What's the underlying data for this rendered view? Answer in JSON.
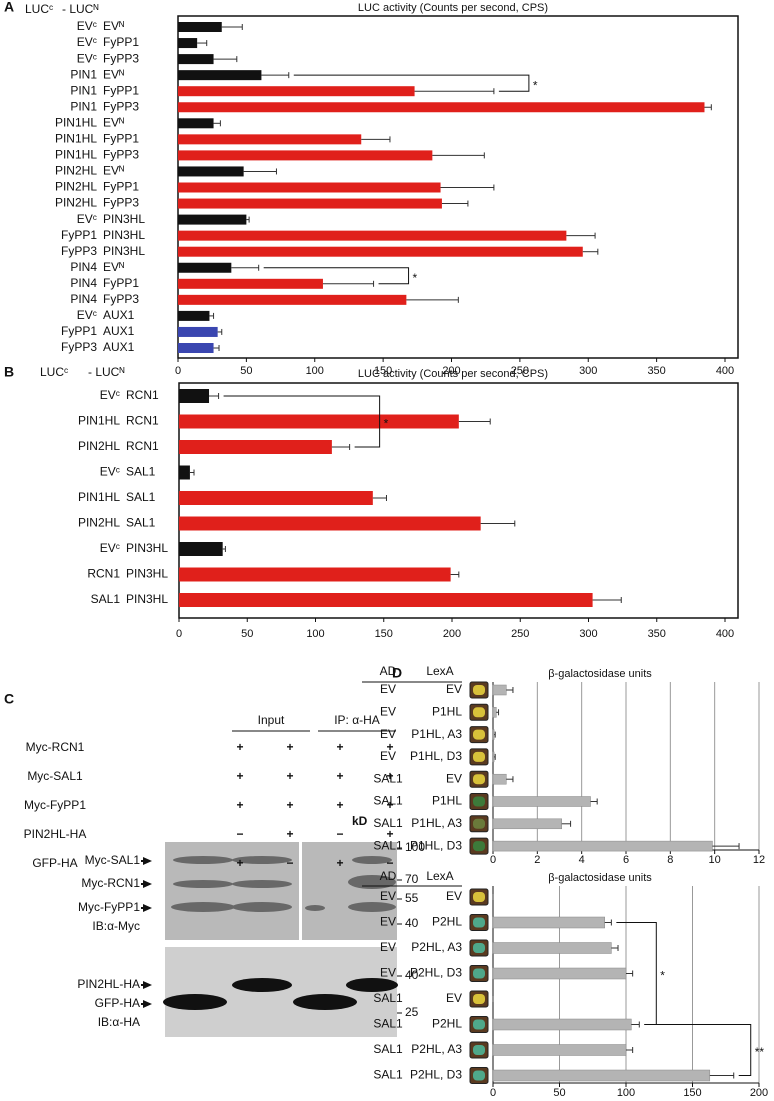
{
  "chart_data": [
    {
      "type": "bar",
      "panel": "A",
      "title": "LUC activity (Counts per second, CPS)",
      "headers": [
        "LUCᶜ",
        "- LUCᴺ"
      ],
      "labels": [
        [
          "EVᶜ",
          "EVᴺ"
        ],
        [
          "EVᶜ",
          "FyPP1"
        ],
        [
          "EVᶜ",
          "FyPP3"
        ],
        [
          "PIN1",
          "EVᴺ"
        ],
        [
          "PIN1",
          "FyPP1"
        ],
        [
          "PIN1",
          "FyPP3"
        ],
        [
          "PIN1HL",
          "EVᴺ"
        ],
        [
          "PIN1HL",
          "FyPP1"
        ],
        [
          "PIN1HL",
          "FyPP3"
        ],
        [
          "PIN2HL",
          "EVᴺ"
        ],
        [
          "PIN2HL",
          "FyPP1"
        ],
        [
          "PIN2HL",
          "FyPP3"
        ],
        [
          "EVᶜ",
          "PIN3HL"
        ],
        [
          "FyPP1",
          "PIN3HL"
        ],
        [
          "FyPP3",
          "PIN3HL"
        ],
        [
          "PIN4",
          "EVᴺ"
        ],
        [
          "PIN4",
          "FyPP1"
        ],
        [
          "PIN4",
          "FyPP3"
        ],
        [
          "EVᶜ",
          "AUX1"
        ],
        [
          "FyPP1",
          "AUX1"
        ],
        [
          "FyPP3",
          "AUX1"
        ]
      ],
      "values": [
        32,
        14,
        26,
        61,
        173,
        385,
        26,
        134,
        186,
        48,
        192,
        193,
        50,
        284,
        296,
        39,
        106,
        167,
        23,
        29,
        26
      ],
      "errors": [
        15,
        7,
        17,
        20,
        58,
        5,
        5,
        21,
        38,
        24,
        39,
        19,
        2,
        21,
        11,
        20,
        37,
        38,
        3,
        3,
        4
      ],
      "colors": [
        "#111111",
        "#111111",
        "#111111",
        "#111111",
        "#e0201b",
        "#e0201b",
        "#111111",
        "#e0201b",
        "#e0201b",
        "#111111",
        "#e0201b",
        "#e0201b",
        "#111111",
        "#e0201b",
        "#e0201b",
        "#111111",
        "#e0201b",
        "#e0201b",
        "#111111",
        "#3a46b0",
        "#3a46b0"
      ],
      "xlim": [
        0,
        400
      ],
      "xticks": [
        0,
        50,
        100,
        150,
        200,
        250,
        300,
        350,
        400
      ],
      "grid": false,
      "frame": true,
      "annotations": [
        {
          "text": "*",
          "rows": [
            3,
            4
          ]
        },
        {
          "text": "*",
          "rows": [
            15,
            16
          ]
        }
      ]
    },
    {
      "type": "bar",
      "panel": "B",
      "title": "LUC activity (Counts per second, CPS)",
      "headers": [
        "LUCᶜ",
        "- LUCᴺ"
      ],
      "labels": [
        [
          "EVᶜ",
          "RCN1"
        ],
        [
          "PIN1HL",
          "RCN1"
        ],
        [
          "PIN2HL",
          "RCN1"
        ],
        [
          "EVᶜ",
          "SAL1"
        ],
        [
          "PIN1HL",
          "SAL1"
        ],
        [
          "PIN2HL",
          "SAL1"
        ],
        [
          "EVᶜ",
          "PIN3HL"
        ],
        [
          "RCN1",
          "PIN3HL"
        ],
        [
          "SAL1",
          "PIN3HL"
        ]
      ],
      "values": [
        22,
        205,
        112,
        8,
        142,
        221,
        32,
        199,
        303
      ],
      "errors": [
        7,
        23,
        13,
        3,
        10,
        25,
        2,
        6,
        21
      ],
      "colors": [
        "#111111",
        "#e0201b",
        "#e0201b",
        "#111111",
        "#e0201b",
        "#e0201b",
        "#111111",
        "#e0201b",
        "#e0201b"
      ],
      "xlim": [
        0,
        400
      ],
      "xticks": [
        0,
        50,
        100,
        150,
        200,
        250,
        300,
        350,
        400
      ],
      "grid": false,
      "frame": true,
      "annotations": [
        {
          "text": "*",
          "rows": [
            0,
            2
          ]
        }
      ]
    },
    {
      "type": "bar",
      "panel": "D",
      "title": "β-galactosidase units",
      "headers": [
        "AD",
        "LexA"
      ],
      "labels": [
        [
          "EV",
          "EV"
        ],
        [
          "EV",
          "P1HL"
        ],
        [
          "EV",
          "P1HL, A3"
        ],
        [
          "EV",
          "P1HL, D3"
        ],
        [
          "SAL1",
          "EV"
        ],
        [
          "SAL1",
          "P1HL"
        ],
        [
          "SAL1",
          "P1HL, A3"
        ],
        [
          "SAL1",
          "P1HL, D3"
        ]
      ],
      "values": [
        0.6,
        0.15,
        0.05,
        0.05,
        0.6,
        4.4,
        3.1,
        9.9
      ],
      "errors": [
        0.3,
        0.1,
        0.05,
        0.05,
        0.3,
        0.3,
        0.4,
        1.2
      ],
      "color": "#b4b4b4",
      "patch_colors": [
        "#d8c13a",
        "#d8c13a",
        "#d8c13a",
        "#d8c13a",
        "#d8c13a",
        "#3d7a3a",
        "#6a7a3a",
        "#3d7a3a"
      ],
      "xlim": [
        0,
        12
      ],
      "xticks": [
        0,
        2,
        4,
        6,
        8,
        10,
        12
      ],
      "grid": true,
      "frame": false,
      "annotations": []
    },
    {
      "type": "bar",
      "title": "β-galactosidase units",
      "headers": [
        "AD",
        "LexA"
      ],
      "labels": [
        [
          "EV",
          "EV"
        ],
        [
          "EV",
          "P2HL"
        ],
        [
          "EV",
          "P2HL, A3"
        ],
        [
          "EV",
          "P2HL, D3"
        ],
        [
          "SAL1",
          "EV"
        ],
        [
          "SAL1",
          "P2HL"
        ],
        [
          "SAL1",
          "P2HL, A3"
        ],
        [
          "SAL1",
          "P2HL, D3"
        ]
      ],
      "values": [
        0,
        84,
        89,
        100,
        0,
        104,
        100,
        163
      ],
      "errors": [
        0,
        5,
        5,
        5,
        0,
        6,
        5,
        18
      ],
      "color": "#b4b4b4",
      "patch_colors": [
        "#d8c13a",
        "#4fa88a",
        "#4fa88a",
        "#4fa88a",
        "#d8c13a",
        "#4fa88a",
        "#4fa88a",
        "#4fa88a"
      ],
      "xlim": [
        0,
        200
      ],
      "xticks": [
        0,
        50,
        100,
        150,
        200
      ],
      "grid": true,
      "frame": false,
      "annotations": [
        {
          "text": "*",
          "rows": [
            1,
            5
          ]
        },
        {
          "text": "**",
          "rows": [
            5,
            7
          ]
        }
      ]
    }
  ],
  "panel_c": {
    "letter": "C",
    "groups": [
      "Input",
      "IP: α-HA"
    ],
    "rows": [
      {
        "label": "Myc-RCN1",
        "signs": [
          "+",
          "+",
          "+",
          "+"
        ]
      },
      {
        "label": "Myc-SAL1",
        "signs": [
          "+",
          "+",
          "+",
          "+"
        ]
      },
      {
        "label": "Myc-FyPP1",
        "signs": [
          "+",
          "+",
          "+",
          "+"
        ]
      },
      {
        "label": "PIN2HL-HA",
        "signs": [
          "−",
          "+",
          "−",
          "+"
        ]
      },
      {
        "label": "GFP-HA",
        "signs": [
          "+",
          "−",
          "+",
          "−"
        ]
      }
    ],
    "unit": "kD",
    "markers_top": [
      100,
      70,
      55,
      40
    ],
    "markers_bottom": [
      40,
      25
    ],
    "bands_top": [
      "Myc-SAL1",
      "Myc-RCN1",
      "Myc-FyPP1"
    ],
    "ib_top": "IB:α-Myc",
    "bands_bottom": [
      "PIN2HL-HA",
      "GFP-HA"
    ],
    "ib_bottom": "IB:α-HA"
  }
}
